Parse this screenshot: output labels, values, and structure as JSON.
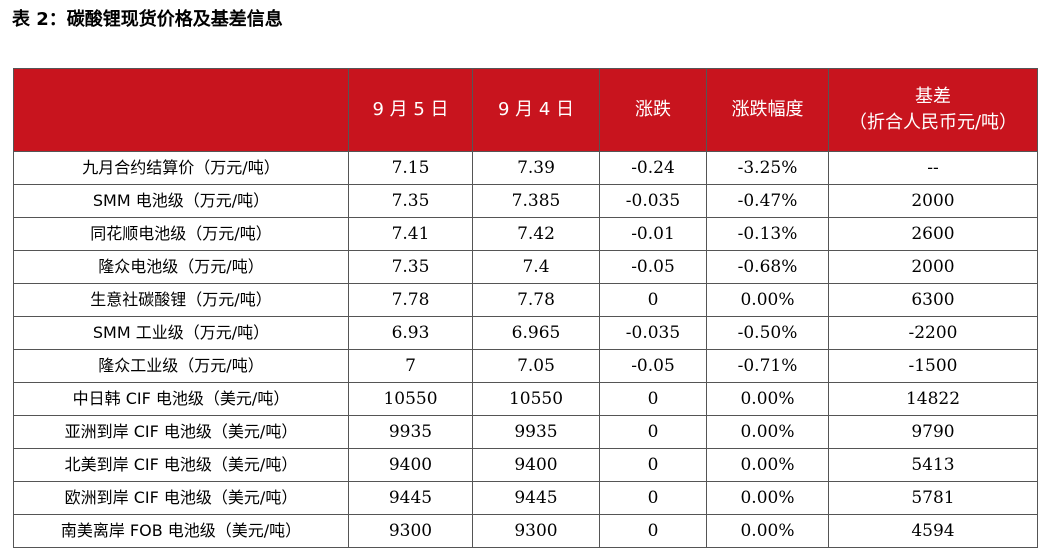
{
  "caption": "表 2：碳酸锂现货价格及基差信息",
  "header": {
    "col0": "",
    "col1": "9 月 5 日",
    "col2": "9 月 4 日",
    "col3": "涨跌",
    "col4": "涨跌幅度",
    "col5_line1": "基差",
    "col5_line2": "（折合人民币元/吨）"
  },
  "rows": [
    {
      "name": "九月合约结算价（万元/吨）",
      "d5": "7.15",
      "d4": "7.39",
      "chg": "-0.24",
      "pct": "-3.25%",
      "basis": "--"
    },
    {
      "name": "SMM 电池级（万元/吨）",
      "d5": "7.35",
      "d4": "7.385",
      "chg": "-0.035",
      "pct": "-0.47%",
      "basis": "2000"
    },
    {
      "name": "同花顺电池级（万元/吨）",
      "d5": "7.41",
      "d4": "7.42",
      "chg": "-0.01",
      "pct": "-0.13%",
      "basis": "2600"
    },
    {
      "name": "隆众电池级（万元/吨）",
      "d5": "7.35",
      "d4": "7.4",
      "chg": "-0.05",
      "pct": "-0.68%",
      "basis": "2000"
    },
    {
      "name": "生意社碳酸锂（万元/吨）",
      "d5": "7.78",
      "d4": "7.78",
      "chg": "0",
      "pct": "0.00%",
      "basis": "6300"
    },
    {
      "name": "SMM 工业级（万元/吨）",
      "d5": "6.93",
      "d4": "6.965",
      "chg": "-0.035",
      "pct": "-0.50%",
      "basis": "-2200"
    },
    {
      "name": "隆众工业级（万元/吨）",
      "d5": "7",
      "d4": "7.05",
      "chg": "-0.05",
      "pct": "-0.71%",
      "basis": "-1500"
    },
    {
      "name": "中日韩 CIF 电池级（美元/吨）",
      "d5": "10550",
      "d4": "10550",
      "chg": "0",
      "pct": "0.00%",
      "basis": "14822"
    },
    {
      "name": "亚洲到岸 CIF 电池级（美元/吨）",
      "d5": "9935",
      "d4": "9935",
      "chg": "0",
      "pct": "0.00%",
      "basis": "9790"
    },
    {
      "name": "北美到岸 CIF 电池级（美元/吨）",
      "d5": "9400",
      "d4": "9400",
      "chg": "0",
      "pct": "0.00%",
      "basis": "5413"
    },
    {
      "name": "欧洲到岸 CIF 电池级（美元/吨）",
      "d5": "9445",
      "d4": "9445",
      "chg": "0",
      "pct": "0.00%",
      "basis": "5781"
    },
    {
      "name": "南美离岸 FOB 电池级（美元/吨）",
      "d5": "9300",
      "d4": "9300",
      "chg": "0",
      "pct": "0.00%",
      "basis": "4594"
    }
  ],
  "colors": {
    "header_bg": "#c8141e",
    "header_text": "#ffffff"
  }
}
